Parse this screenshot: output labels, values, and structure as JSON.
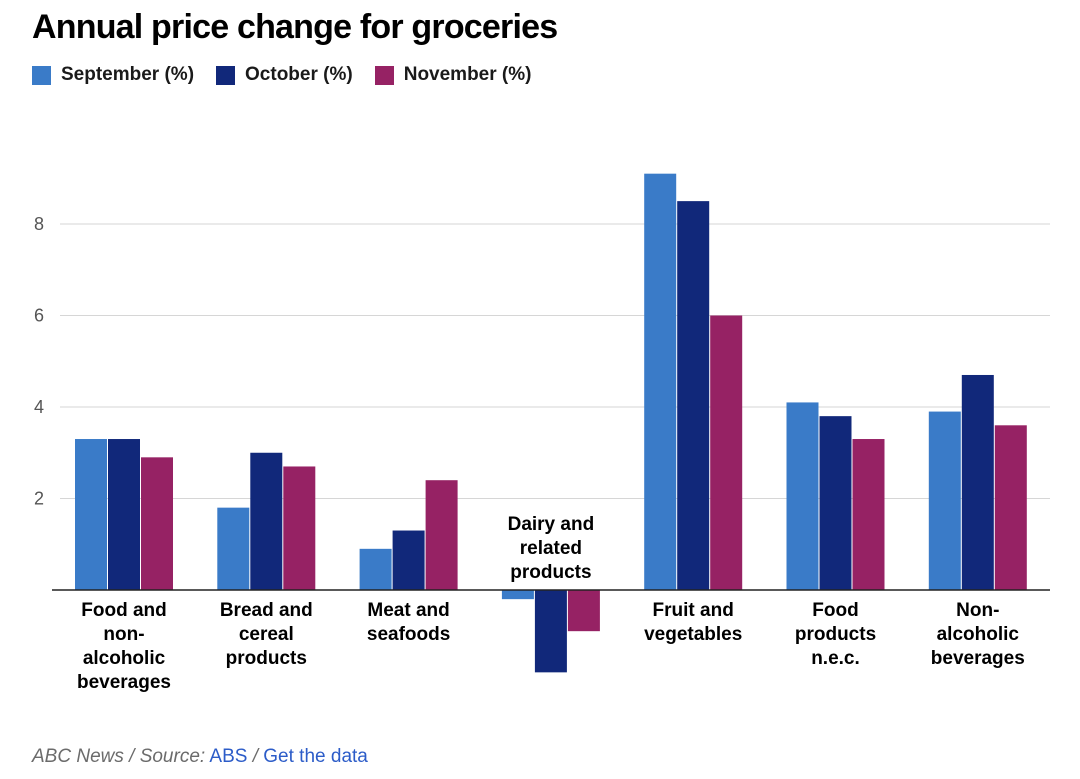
{
  "title": "Annual price change for groceries",
  "footer": {
    "credit": "ABC News / Source:",
    "source_link": "ABS",
    "separator": "/",
    "data_link": "Get the data"
  },
  "chart_data": {
    "type": "bar",
    "title": "Annual price change for groceries",
    "xlabel": "",
    "ylabel": "",
    "ylim": [
      -1.8,
      9.5
    ],
    "yticks": [
      2,
      4,
      6,
      8
    ],
    "grid": true,
    "legend_position": "top-left",
    "categories": [
      "Food and non-alcoholic beverages",
      "Bread and cereal products",
      "Meat and seafoods",
      "Dairy and related products",
      "Fruit and vegetables",
      "Food products n.e.c.",
      "Non-alcoholic beverages"
    ],
    "category_label_lines": [
      [
        "Food and",
        "non-",
        "alcoholic",
        "beverages"
      ],
      [
        "Bread and",
        "cereal",
        "products"
      ],
      [
        "Meat and",
        "seafoods"
      ],
      [
        "Dairy and",
        "related",
        "products"
      ],
      [
        "Fruit and",
        "vegetables"
      ],
      [
        "Food",
        "products",
        "n.e.c."
      ],
      [
        "Non-",
        "alcoholic",
        "beverages"
      ]
    ],
    "series": [
      {
        "name": "September (%)",
        "color": "#3a7bc8",
        "values": [
          3.3,
          1.8,
          0.9,
          -0.2,
          9.1,
          4.1,
          3.9
        ]
      },
      {
        "name": "October (%)",
        "color": "#11287a",
        "values": [
          3.3,
          3.0,
          1.3,
          -1.8,
          8.5,
          3.8,
          4.7
        ]
      },
      {
        "name": "November (%)",
        "color": "#962264",
        "values": [
          2.9,
          2.7,
          2.4,
          -0.9,
          6.0,
          3.3,
          3.6
        ]
      }
    ]
  }
}
